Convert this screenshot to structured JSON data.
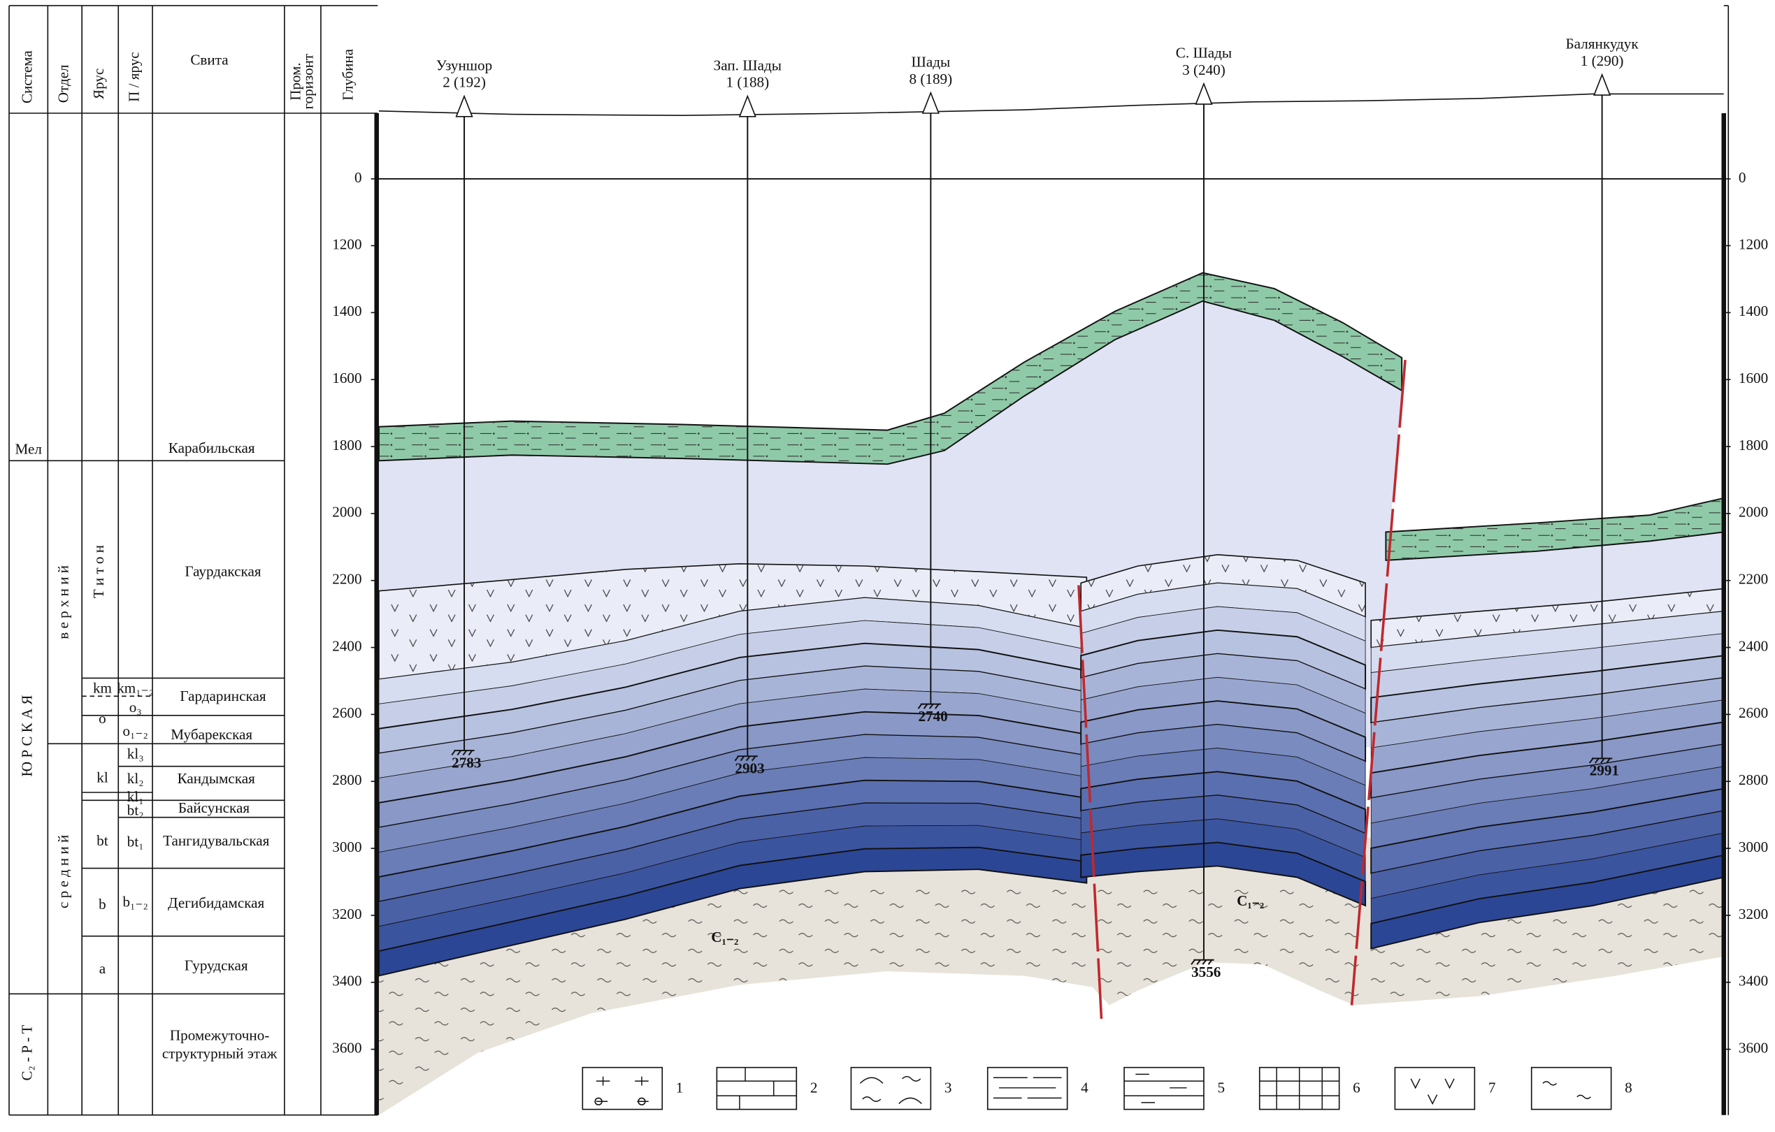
{
  "stratigraphy": {
    "headers": {
      "system": "Система",
      "division": "Отдел",
      "stage": "Ярус",
      "substage": "П / ярус",
      "suite": "Свита",
      "horizon": [
        "Пром.",
        "горизонт"
      ],
      "depth": "Глубина"
    },
    "systems": [
      "Мел",
      "Ю Р С К А Я",
      "C₂ - P - T"
    ],
    "divisions": [
      "в е р х н и й",
      "с р е д н и й"
    ],
    "stages": [
      "Т и т о н",
      "km",
      "o",
      "kl",
      "bt",
      "b",
      "a"
    ],
    "substages": [
      "km₁₋₂",
      "o₃",
      "o₁₋₂",
      "kl₃",
      "kl₂",
      "kl₁",
      "bt₂",
      "bt₁",
      "b₁₋₂"
    ],
    "suites": [
      "Карабильская",
      "Гаурдакская",
      "Гардаринская",
      "Мубарекская",
      "Кандымская",
      "Байсунская",
      "Тангидувальская",
      "Дегибидамская",
      "Гурудская"
    ],
    "intermediate_stage": [
      "Промежуточно-",
      "структурный этаж"
    ]
  },
  "depth_ticks": [
    0,
    1200,
    1400,
    1600,
    1800,
    2000,
    2200,
    2400,
    2600,
    2800,
    3000,
    3200,
    3400,
    3600
  ],
  "wells": [
    {
      "name": "Узуншор",
      "label": "2 (192)",
      "depth": 2783
    },
    {
      "name": "Зап. Шады",
      "label": "1 (188)",
      "depth": 2903
    },
    {
      "name": "Шады",
      "label": "8 (189)",
      "depth": 2740
    },
    {
      "name": "С. Шады",
      "label": "3 (240)",
      "depth": 3556
    },
    {
      "name": "Балянкудук",
      "label": "1 (290)",
      "depth": 2991
    }
  ],
  "formation_labels": [
    "С₁₋₂",
    "С₁₋₂"
  ],
  "legend": [
    1,
    2,
    3,
    4,
    5,
    6,
    7,
    8
  ]
}
